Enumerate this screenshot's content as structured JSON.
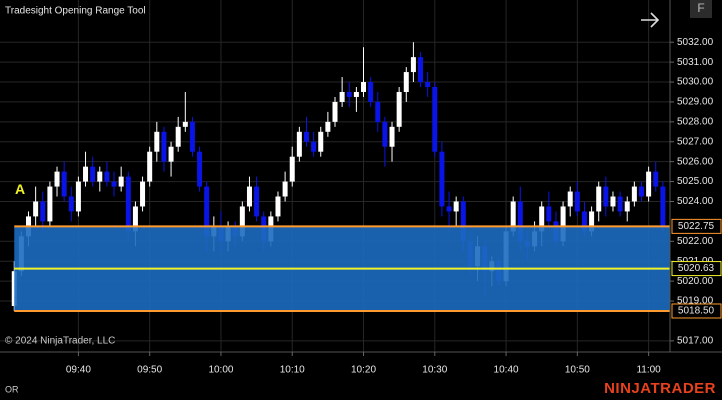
{
  "title": "Tradesight Opening Range Tool",
  "button": "F",
  "copyright": "© 2024 NinjaTrader, LLC",
  "footer_label": "OR",
  "brand": "NINJATRADER",
  "chart_data": {
    "type": "candlestick",
    "up_color": "#ffffff",
    "down_color": "#0a14e6",
    "grid": true,
    "xlim": [
      "09:29",
      "11:03"
    ],
    "ylim": [
      5016.44,
      5034.12
    ],
    "xticks": [
      "09:40",
      "09:50",
      "10:00",
      "10:10",
      "10:20",
      "10:30",
      "10:40",
      "10:50",
      "11:00"
    ],
    "yticks": [
      {
        "value": 5032,
        "label": "5032.00"
      },
      {
        "value": 5031,
        "label": "5031.00"
      },
      {
        "value": 5030,
        "label": "5030.00"
      },
      {
        "value": 5029,
        "label": "5029.00"
      },
      {
        "value": 5028,
        "label": "5028.00"
      },
      {
        "value": 5027,
        "label": "5027.00"
      },
      {
        "value": 5026,
        "label": "5026.00"
      },
      {
        "value": 5025,
        "label": "5025.00"
      },
      {
        "value": 5024,
        "label": "5024.00"
      },
      {
        "value": 5022,
        "label": "5022.00"
      },
      {
        "value": 5021,
        "label": "5021.00"
      },
      {
        "value": 5020,
        "label": "5020.00"
      },
      {
        "value": 5019,
        "label": "5019.00"
      },
      {
        "value": 5017,
        "label": "5017.00"
      }
    ],
    "opening_range": {
      "label": "A",
      "fill": "#1c6cc0",
      "high": {
        "value": 5022.75,
        "label": "5022.75",
        "color": "#ff9a2e"
      },
      "mid": {
        "value": 5020.63,
        "label": "5020.63",
        "color": "#f2f22a"
      },
      "low": {
        "value": 5018.5,
        "label": "5018.50",
        "color": "#ff9a2e"
      }
    },
    "x": [
      "09:31",
      "09:32",
      "09:33",
      "09:34",
      "09:35",
      "09:36",
      "09:37",
      "09:38",
      "09:39",
      "09:40",
      "09:41",
      "09:42",
      "09:43",
      "09:44",
      "09:45",
      "09:46",
      "09:47",
      "09:48",
      "09:49",
      "09:50",
      "09:51",
      "09:52",
      "09:53",
      "09:54",
      "09:55",
      "09:56",
      "09:57",
      "09:58",
      "09:59",
      "10:00",
      "10:01",
      "10:02",
      "10:03",
      "10:04",
      "10:05",
      "10:06",
      "10:07",
      "10:08",
      "10:09",
      "10:10",
      "10:11",
      "10:12",
      "10:13",
      "10:14",
      "10:15",
      "10:16",
      "10:17",
      "10:18",
      "10:19",
      "10:20",
      "10:21",
      "10:22",
      "10:23",
      "10:24",
      "10:25",
      "10:26",
      "10:27",
      "10:28",
      "10:29",
      "10:30",
      "10:31",
      "10:32",
      "10:33",
      "10:34",
      "10:35",
      "10:36",
      "10:37",
      "10:38",
      "10:39",
      "10:40",
      "10:41",
      "10:42",
      "10:43",
      "10:44",
      "10:45",
      "10:46",
      "10:47",
      "10:48",
      "10:49",
      "10:50",
      "10:51",
      "10:52",
      "10:53",
      "10:54",
      "10:55",
      "10:56",
      "10:57",
      "10:58",
      "10:59",
      "11:00",
      "11:01",
      "11:02"
    ],
    "ohlc": [
      [
        5018.75,
        5021.0,
        5018.5,
        5020.5
      ],
      [
        5020.5,
        5022.5,
        5020.25,
        5022.25
      ],
      [
        5022.25,
        5023.5,
        5021.75,
        5023.25
      ],
      [
        5023.25,
        5024.75,
        5022.75,
        5024.0
      ],
      [
        5024.0,
        5024.5,
        5022.5,
        5023.0
      ],
      [
        5023.0,
        5025.0,
        5022.75,
        5024.75
      ],
      [
        5024.75,
        5025.75,
        5024.25,
        5025.5
      ],
      [
        5025.5,
        5026.0,
        5024.0,
        5024.25
      ],
      [
        5024.25,
        5024.75,
        5023.0,
        5023.5
      ],
      [
        5023.5,
        5025.25,
        5023.25,
        5025.0
      ],
      [
        5025.0,
        5026.5,
        5024.75,
        5025.75
      ],
      [
        5025.75,
        5026.25,
        5024.75,
        5025.0
      ],
      [
        5025.0,
        5025.75,
        5024.5,
        5025.5
      ],
      [
        5025.5,
        5026.0,
        5024.75,
        5025.0
      ],
      [
        5025.0,
        5025.5,
        5024.25,
        5024.75
      ],
      [
        5024.75,
        5025.75,
        5024.5,
        5025.25
      ],
      [
        5025.25,
        5025.5,
        5022.0,
        5022.5
      ],
      [
        5022.5,
        5024.0,
        5021.75,
        5023.75
      ],
      [
        5023.75,
        5025.25,
        5023.5,
        5025.0
      ],
      [
        5025.0,
        5026.75,
        5024.75,
        5026.5
      ],
      [
        5026.5,
        5028.0,
        5026.0,
        5027.5
      ],
      [
        5027.5,
        5027.75,
        5025.5,
        5026.0
      ],
      [
        5026.0,
        5027.0,
        5025.25,
        5026.75
      ],
      [
        5026.75,
        5028.25,
        5026.5,
        5027.75
      ],
      [
        5027.75,
        5029.5,
        5027.5,
        5028.0
      ],
      [
        5028.0,
        5028.25,
        5026.25,
        5026.5
      ],
      [
        5026.5,
        5026.75,
        5024.5,
        5024.75
      ],
      [
        5024.75,
        5025.0,
        5021.5,
        5022.25
      ],
      [
        5022.25,
        5023.25,
        5021.5,
        5022.75
      ],
      [
        5022.75,
        5023.5,
        5021.5,
        5022.0
      ],
      [
        5022.0,
        5023.0,
        5021.5,
        5022.75
      ],
      [
        5022.75,
        5023.0,
        5021.75,
        5022.25
      ],
      [
        5022.25,
        5024.0,
        5022.0,
        5023.75
      ],
      [
        5023.75,
        5025.25,
        5023.5,
        5024.75
      ],
      [
        5024.75,
        5025.25,
        5023.0,
        5023.25
      ],
      [
        5023.25,
        5023.5,
        5021.5,
        5022.0
      ],
      [
        5022.0,
        5023.5,
        5021.75,
        5023.25
      ],
      [
        5023.25,
        5024.5,
        5023.0,
        5024.25
      ],
      [
        5024.25,
        5025.5,
        5024.0,
        5025.0
      ],
      [
        5025.0,
        5026.75,
        5024.75,
        5026.25
      ],
      [
        5026.25,
        5027.75,
        5026.0,
        5027.5
      ],
      [
        5027.5,
        5028.25,
        5026.75,
        5027.0
      ],
      [
        5027.0,
        5027.5,
        5026.25,
        5026.5
      ],
      [
        5026.5,
        5027.75,
        5026.25,
        5027.5
      ],
      [
        5027.5,
        5028.5,
        5027.25,
        5028.0
      ],
      [
        5028.0,
        5029.25,
        5027.75,
        5029.0
      ],
      [
        5029.0,
        5030.25,
        5028.75,
        5029.5
      ],
      [
        5029.5,
        5030.0,
        5028.75,
        5029.25
      ],
      [
        5029.25,
        5029.75,
        5028.5,
        5029.5
      ],
      [
        5029.5,
        5031.75,
        5029.25,
        5030.0
      ],
      [
        5030.0,
        5030.25,
        5028.75,
        5029.0
      ],
      [
        5029.0,
        5029.5,
        5027.5,
        5028.0
      ],
      [
        5028.0,
        5028.25,
        5025.75,
        5026.75
      ],
      [
        5026.75,
        5028.0,
        5026.0,
        5027.75
      ],
      [
        5027.75,
        5029.75,
        5027.5,
        5029.5
      ],
      [
        5029.5,
        5030.75,
        5029.0,
        5030.5
      ],
      [
        5030.5,
        5032.0,
        5030.0,
        5031.25
      ],
      [
        5031.25,
        5031.5,
        5029.75,
        5030.0
      ],
      [
        5030.0,
        5030.5,
        5029.25,
        5029.75
      ],
      [
        5029.75,
        5030.0,
        5026.25,
        5026.5
      ],
      [
        5026.5,
        5027.0,
        5023.25,
        5023.75
      ],
      [
        5023.75,
        5024.5,
        5022.5,
        5023.5
      ],
      [
        5023.5,
        5024.25,
        5022.75,
        5024.0
      ],
      [
        5024.0,
        5024.25,
        5021.5,
        5022.0
      ],
      [
        5022.0,
        5022.5,
        5020.25,
        5020.75
      ],
      [
        5020.75,
        5022.25,
        5020.0,
        5021.75
      ],
      [
        5021.75,
        5022.0,
        5019.25,
        5020.5
      ],
      [
        5020.5,
        5021.25,
        5019.75,
        5021.0
      ],
      [
        5021.0,
        5021.25,
        5019.75,
        5020.0
      ],
      [
        5020.0,
        5022.75,
        5019.75,
        5022.5
      ],
      [
        5022.5,
        5024.25,
        5022.25,
        5024.0
      ],
      [
        5024.0,
        5024.75,
        5021.5,
        5022.0
      ],
      [
        5022.0,
        5022.5,
        5021.0,
        5021.75
      ],
      [
        5021.75,
        5023.0,
        5021.5,
        5022.5
      ],
      [
        5022.5,
        5024.0,
        5021.75,
        5023.75
      ],
      [
        5023.75,
        5024.5,
        5022.75,
        5023.0
      ],
      [
        5023.0,
        5023.5,
        5021.75,
        5022.0
      ],
      [
        5022.0,
        5024.0,
        5021.75,
        5023.75
      ],
      [
        5023.75,
        5024.75,
        5023.25,
        5024.5
      ],
      [
        5024.5,
        5025.0,
        5023.25,
        5023.5
      ],
      [
        5023.5,
        5024.0,
        5022.25,
        5022.5
      ],
      [
        5022.5,
        5023.75,
        5022.25,
        5023.5
      ],
      [
        5023.5,
        5025.0,
        5023.0,
        5024.75
      ],
      [
        5024.75,
        5025.25,
        5023.25,
        5023.75
      ],
      [
        5023.75,
        5024.5,
        5023.5,
        5024.25
      ],
      [
        5024.25,
        5024.5,
        5023.25,
        5023.5
      ],
      [
        5023.5,
        5024.25,
        5023.0,
        5024.0
      ],
      [
        5024.0,
        5025.0,
        5023.75,
        5024.75
      ],
      [
        5024.75,
        5025.0,
        5024.0,
        5024.25
      ],
      [
        5024.25,
        5025.75,
        5024.0,
        5025.5
      ],
      [
        5025.5,
        5026.0,
        5024.5,
        5024.75
      ],
      [
        5024.75,
        5025.0,
        5022.5,
        5022.75
      ]
    ]
  }
}
